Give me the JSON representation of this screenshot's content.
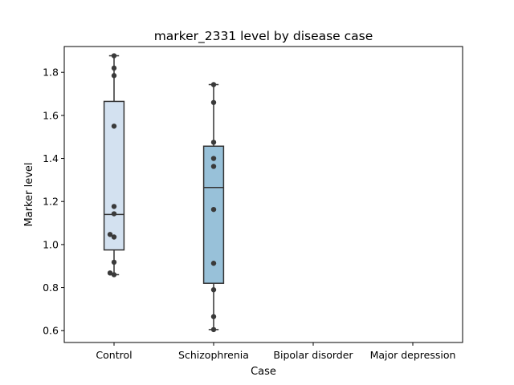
{
  "chart_data": {
    "type": "box",
    "title": "marker_2331 level by disease case",
    "xlabel": "Case",
    "ylabel": "Marker level",
    "categories": [
      "Control",
      "Schizophrenia",
      "Bipolar disorder",
      "Major depression"
    ],
    "ylim": [
      0.545,
      1.92
    ],
    "yticks": [
      0.6,
      0.8,
      1.0,
      1.2,
      1.4,
      1.6,
      1.8
    ],
    "ytick_labels": [
      "0.6",
      "0.8",
      "1.0",
      "1.2",
      "1.4",
      "1.6",
      "1.8"
    ],
    "grid": false,
    "boxes": [
      {
        "category": "Control",
        "whisker_low": 0.86,
        "q1": 0.975,
        "median": 1.14,
        "q3": 1.665,
        "whisker_high": 1.877,
        "color": "#d3e1f0"
      },
      {
        "category": "Schizophrenia",
        "whisker_low": 0.605,
        "q1": 0.82,
        "median": 1.265,
        "q3": 1.457,
        "whisker_high": 1.743,
        "color": "#98c1d9"
      }
    ],
    "points": [
      {
        "category": "Control",
        "values": [
          1.877,
          1.82,
          1.785,
          1.55,
          1.177,
          1.143,
          1.047,
          1.035,
          0.918,
          0.868,
          0.86
        ],
        "offsets": [
          0.0,
          0.0,
          0.0,
          0.0,
          0.0,
          0.0,
          -0.04,
          0.0,
          0.0,
          -0.04,
          0.0
        ]
      },
      {
        "category": "Schizophrenia",
        "values": [
          1.743,
          1.66,
          1.475,
          1.4,
          1.363,
          1.163,
          0.913,
          0.79,
          0.665,
          0.605
        ],
        "offsets": [
          0.0,
          0.0,
          0.0,
          0.0,
          0.0,
          0.0,
          0.0,
          0.0,
          0.0,
          0.0
        ]
      }
    ],
    "colors": {
      "edge": "#333333",
      "point": "#3a3a3a",
      "axis": "#000000"
    }
  }
}
